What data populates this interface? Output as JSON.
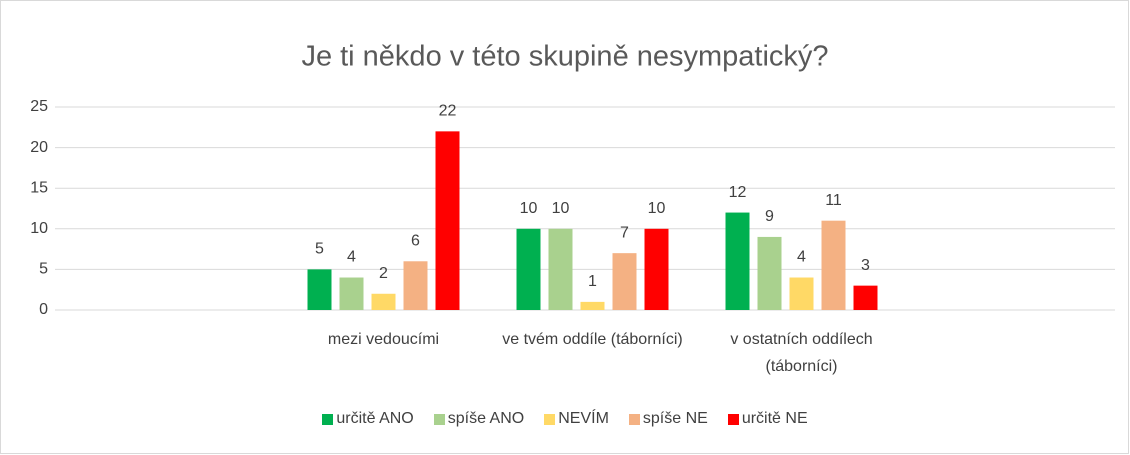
{
  "chart_data": {
    "type": "bar",
    "title": "Je ti někdo v této skupině nesympatický?",
    "categories": [
      null,
      "mezi vedoucími",
      "ve tvém oddíle (táborníci)",
      "v ostatních oddílech (táborníci)",
      null
    ],
    "series": [
      {
        "name": "určitě ANO",
        "color": "#00b050",
        "values": [
          null,
          5,
          10,
          12,
          null
        ]
      },
      {
        "name": "spíše ANO",
        "color": "#a9d18e",
        "values": [
          null,
          4,
          10,
          9,
          null
        ]
      },
      {
        "name": "NEVÍM",
        "color": "#ffd966",
        "values": [
          null,
          2,
          1,
          4,
          null
        ]
      },
      {
        "name": "spíše NE",
        "color": "#f4b183",
        "values": [
          null,
          6,
          7,
          11,
          null
        ]
      },
      {
        "name": "určitě NE",
        "color": "#ff0000",
        "values": [
          null,
          22,
          10,
          3,
          null
        ]
      }
    ],
    "ylim": [
      0,
      25
    ],
    "yticks": [
      0,
      5,
      10,
      15,
      20,
      25
    ],
    "grid": true,
    "legend": "bottom"
  }
}
